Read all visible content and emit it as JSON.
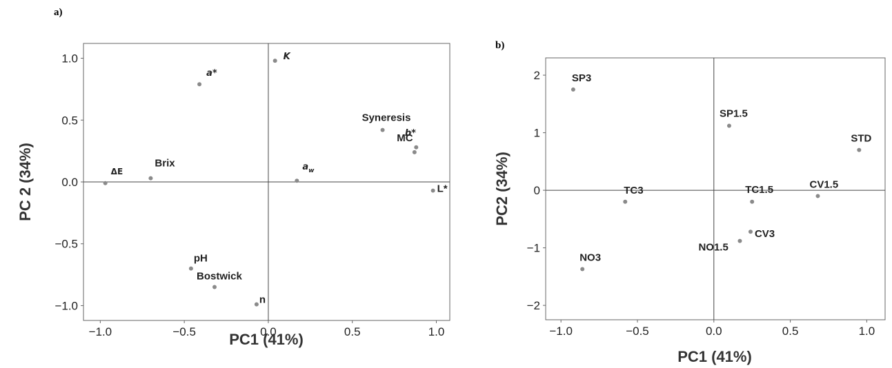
{
  "chart_data": [
    {
      "type": "scatter",
      "panel_label": "a)",
      "xlabel": "PC1 (41%)",
      "ylabel": "PC 2 (34%)",
      "xlim": [
        -1.1,
        1.08
      ],
      "ylim": [
        -1.12,
        1.12
      ],
      "xticks": [
        -1.0,
        -0.5,
        0.0,
        0.5,
        1.0
      ],
      "xtick_labels": [
        "−1.0",
        "−0.5",
        "0.0",
        "0.5",
        "1.0"
      ],
      "yticks": [
        1.0,
        0.5,
        0.0,
        -0.5,
        -1.0
      ],
      "ytick_labels": [
        "1.0",
        "0.5",
        "0.0",
        "−0.5",
        "−1.0"
      ],
      "reference_lines": {
        "x": 0,
        "y": 0
      },
      "points": [
        {
          "label": "K",
          "x": 0.04,
          "y": 0.98,
          "style": "italic"
        },
        {
          "label": "a*",
          "x": -0.41,
          "y": 0.79,
          "style": "italic"
        },
        {
          "label": "Syneresis",
          "x": 0.68,
          "y": 0.42,
          "style": "bold"
        },
        {
          "label": "MC",
          "x": 0.88,
          "y": 0.28,
          "style": "bold"
        },
        {
          "label": "b*",
          "x": 0.87,
          "y": 0.24,
          "style": "italic"
        },
        {
          "label": "L*",
          "x": 0.98,
          "y": -0.07,
          "style": "bold"
        },
        {
          "label": "ΔE",
          "x": -0.97,
          "y": -0.01,
          "style": "small"
        },
        {
          "label": "Brix",
          "x": -0.7,
          "y": 0.03,
          "style": "bold"
        },
        {
          "label": "aw",
          "x": 0.17,
          "y": 0.01,
          "style": "italic"
        },
        {
          "label": "pH",
          "x": -0.46,
          "y": -0.7,
          "style": "bold"
        },
        {
          "label": "Bostwick",
          "x": -0.32,
          "y": -0.85,
          "style": "bold"
        },
        {
          "label": "n",
          "x": -0.07,
          "y": -0.99,
          "style": "bold"
        }
      ]
    },
    {
      "type": "scatter",
      "panel_label": "b)",
      "xlabel": "PC1 (41%)",
      "ylabel": "PC2 (34%)",
      "xlim": [
        -1.1,
        1.12
      ],
      "ylim": [
        -2.25,
        2.3
      ],
      "xticks": [
        -1.0,
        -0.5,
        0.0,
        0.5,
        1.0
      ],
      "xtick_labels": [
        "−1.0",
        "−0.5",
        "0.0",
        "0.5",
        "1.0"
      ],
      "yticks": [
        2,
        1,
        0,
        -1,
        -2
      ],
      "ytick_labels": [
        "2",
        "1",
        "0",
        "−1",
        "−2"
      ],
      "reference_lines": {
        "x": 0,
        "y": 0
      },
      "points": [
        {
          "label": "SP3",
          "x": -0.92,
          "y": 1.75
        },
        {
          "label": "SP1.5",
          "x": 0.1,
          "y": 1.12
        },
        {
          "label": "STD",
          "x": 0.95,
          "y": 0.7
        },
        {
          "label": "TC3",
          "x": -0.58,
          "y": -0.2
        },
        {
          "label": "TC1.5",
          "x": 0.25,
          "y": -0.2
        },
        {
          "label": "CV1.5",
          "x": 0.68,
          "y": -0.1
        },
        {
          "label": "CV3",
          "x": 0.24,
          "y": -0.72
        },
        {
          "label": "NO1.5",
          "x": 0.17,
          "y": -0.88
        },
        {
          "label": "NO3",
          "x": -0.86,
          "y": -1.37
        }
      ]
    }
  ]
}
